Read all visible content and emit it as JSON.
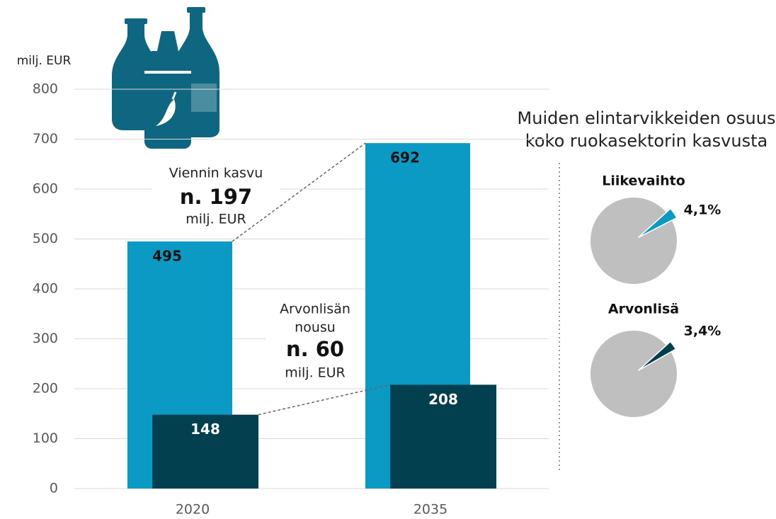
{
  "chart_data": [
    {
      "type": "bar",
      "y_label": "milj. EUR",
      "categories": [
        "2020",
        "2035"
      ],
      "series": [
        {
          "color": "#0a9ac4",
          "values": [
            495,
            692
          ]
        },
        {
          "color": "#02404f",
          "values": [
            148,
            208
          ]
        }
      ],
      "ylim": [
        0,
        800
      ],
      "yticks": [
        0,
        100,
        200,
        300,
        400,
        500,
        600,
        700,
        800
      ],
      "grid": true,
      "annotations": [
        [
          "Viennin kasvu",
          "n. 197",
          "milj. EUR"
        ],
        [
          "Arvonlisän",
          "nousu",
          "n. 60",
          "milj. EUR"
        ]
      ]
    },
    {
      "type": "pie",
      "title": [
        "Muiden elintarvikkeiden osuus",
        "koko ruokasektorin kasvusta"
      ],
      "rest_color": "#bfbfbf",
      "pies": [
        {
          "name": "Liikevaihto",
          "values": [
            4.1
          ],
          "value_labels": [
            "4,1%"
          ],
          "color": "#0a9ac4"
        },
        {
          "name": "Arvonlisä",
          "values": [
            3.4
          ],
          "value_labels": [
            "3,4%"
          ],
          "color": "#02404f"
        }
      ]
    }
  ]
}
